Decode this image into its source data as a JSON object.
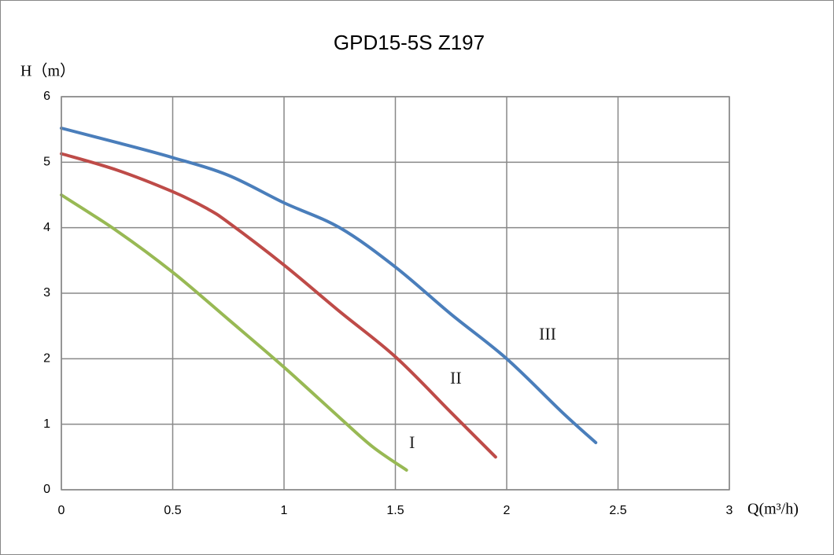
{
  "chart_data": {
    "type": "line",
    "title": "GPD15-5S  Z197",
    "y_label": "H（m）",
    "x_label": "Q(m³/h)",
    "xlim": [
      0,
      3
    ],
    "xticks": [
      0,
      0.5,
      1,
      1.5,
      2,
      2.5,
      3
    ],
    "ylim": [
      0,
      6
    ],
    "yticks": [
      0,
      1,
      2,
      3,
      4,
      5,
      6
    ],
    "grid": true,
    "series": [
      {
        "name": "I",
        "color": "#98b954",
        "x": [
          0,
          0.25,
          0.5,
          0.75,
          1.0,
          1.25,
          1.4,
          1.55
        ],
        "values": [
          4.5,
          3.95,
          3.32,
          2.6,
          1.87,
          1.1,
          0.65,
          0.3
        ]
      },
      {
        "name": "II",
        "color": "#be4b48",
        "x": [
          0,
          0.25,
          0.5,
          0.65,
          0.75,
          1.0,
          1.25,
          1.5,
          1.75,
          1.95
        ],
        "values": [
          5.13,
          4.88,
          4.55,
          4.3,
          4.08,
          3.43,
          2.72,
          2.03,
          1.18,
          0.5
        ]
      },
      {
        "name": "III",
        "color": "#4a7ebb",
        "x": [
          0,
          0.25,
          0.5,
          0.75,
          1.0,
          1.25,
          1.5,
          1.75,
          2.0,
          2.25,
          2.4
        ],
        "values": [
          5.52,
          5.3,
          5.07,
          4.8,
          4.38,
          4.0,
          3.4,
          2.68,
          2.0,
          1.18,
          0.72
        ]
      }
    ]
  }
}
